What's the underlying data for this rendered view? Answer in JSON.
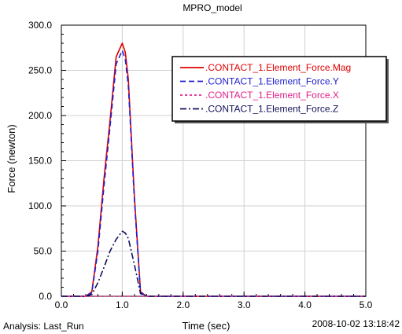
{
  "chart_data": {
    "type": "line",
    "title": "MPRO_model",
    "xlabel": "Time (sec)",
    "ylabel": "Force (newton)",
    "xlim": [
      0.0,
      5.0
    ],
    "ylim": [
      0.0,
      300.0
    ],
    "x_ticks": [
      "0.0",
      "1.0",
      "2.0",
      "3.0",
      "4.0",
      "5.0"
    ],
    "y_ticks": [
      "0.0",
      "50.0",
      "100.0",
      "150.0",
      "200.0",
      "250.0",
      "300.0"
    ],
    "grid": true,
    "legend_position": "top-right",
    "series": [
      {
        "name": ".CONTACT_1.Element_Force.Mag",
        "color": "#e00000",
        "dash": "solid",
        "x": [
          0.0,
          0.4,
          0.5,
          0.6,
          0.7,
          0.8,
          0.9,
          1.0,
          1.05,
          1.1,
          1.2,
          1.3,
          1.4,
          5.0
        ],
        "y": [
          0,
          0,
          5,
          55,
          130,
          195,
          265,
          280,
          270,
          240,
          110,
          5,
          0,
          0
        ]
      },
      {
        "name": ".CONTACT_1.Element_Force.Y",
        "color": "#2020d0",
        "dash": "dashed",
        "x": [
          0.0,
          0.4,
          0.5,
          0.6,
          0.7,
          0.8,
          0.9,
          1.0,
          1.05,
          1.1,
          1.2,
          1.3,
          1.4,
          5.0
        ],
        "y": [
          0,
          0,
          4,
          50,
          122,
          188,
          257,
          272,
          262,
          233,
          106,
          4,
          0,
          0
        ]
      },
      {
        "name": ".CONTACT_1.Element_Force.X",
        "color": "#e0208a",
        "dash": "dotted",
        "x": [
          0.0,
          5.0
        ],
        "y": [
          0,
          0
        ]
      },
      {
        "name": ".CONTACT_1.Element_Force.Z",
        "color": "#10105a",
        "dash": "dashdot",
        "x": [
          0.0,
          0.4,
          0.5,
          0.6,
          0.7,
          0.8,
          0.9,
          1.0,
          1.05,
          1.1,
          1.2,
          1.3,
          1.4,
          5.0
        ],
        "y": [
          0,
          0,
          2,
          15,
          32,
          50,
          63,
          72,
          70,
          64,
          35,
          3,
          0,
          0
        ]
      }
    ]
  },
  "footer": {
    "analysis": "Analysis:  Last_Run",
    "timestamp": "2008-10-02 13:18:42"
  }
}
